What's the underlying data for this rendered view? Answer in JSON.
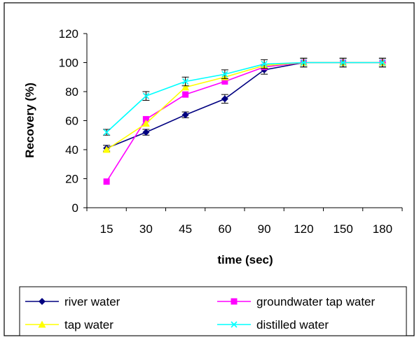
{
  "chart_data": {
    "type": "line",
    "title": "",
    "xlabel": "time (sec)",
    "ylabel": "Recovery (%)",
    "categories": [
      "15",
      "30",
      "45",
      "60",
      "90",
      "120",
      "150",
      "180"
    ],
    "ylim": [
      0,
      120
    ],
    "yticks": [
      "0",
      "20",
      "40",
      "60",
      "80",
      "100",
      "120"
    ],
    "grid": false,
    "error_bars": true,
    "legend_position": "bottom",
    "series": [
      {
        "name": "river water",
        "values": [
          41,
          52,
          64,
          75,
          95,
          100,
          100,
          100
        ],
        "error": [
          2,
          2,
          2,
          3,
          3,
          3,
          3,
          3
        ],
        "color": "#000080",
        "marker": "diamond"
      },
      {
        "name": "groundwater tap water",
        "values": [
          18,
          61,
          78,
          87,
          97,
          100,
          100,
          100
        ],
        "error": [
          0,
          0,
          0,
          0,
          0,
          0,
          0,
          0
        ],
        "color": "#ff00ff",
        "marker": "square"
      },
      {
        "name": "tap water",
        "values": [
          40,
          58,
          83,
          90,
          98,
          100,
          100,
          100
        ],
        "error": [
          0,
          0,
          0,
          0,
          0,
          0,
          0,
          0
        ],
        "color": "#ffff00",
        "marker": "triangle"
      },
      {
        "name": "distilled water",
        "values": [
          52,
          77,
          87,
          92,
          99,
          100,
          100,
          100
        ],
        "error": [
          2,
          3,
          3,
          3,
          3,
          3,
          3,
          3
        ],
        "color": "#00ffff",
        "marker": "x"
      }
    ]
  }
}
